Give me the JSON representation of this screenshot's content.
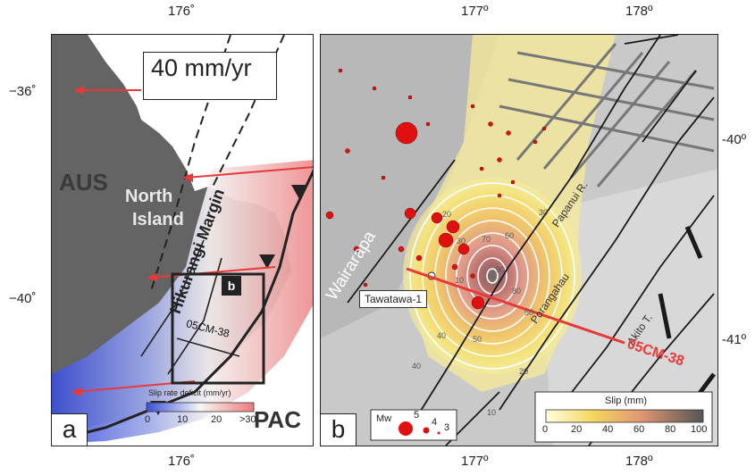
{
  "axes": {
    "a_lon_top": "176˚",
    "a_lon_bottom": "176˚",
    "a_lat_1": "−36˚",
    "a_lat_2": "−40˚",
    "b_lon_177_top": "177º",
    "b_lon_178_top": "178º",
    "b_lon_177_bottom": "177º",
    "b_lon_178_bottom": "178º",
    "b_lat_40": "-40º",
    "b_lat_41": "-41º"
  },
  "panel_a": {
    "letter": "a",
    "scale_label": "40 mm/yr",
    "plate_aus": "AUS",
    "plate_pac": "PAC",
    "north_island": "North Island",
    "north_island_line1": "North",
    "north_island_line2": "Island",
    "margin_label": "Hikurangi Margin",
    "inset_label": "b",
    "profile_label": "05CM-38",
    "colorbar_title": "Slip rate deficit (mm/yr)",
    "colorbar_ticks": [
      "0",
      "10",
      "20",
      ">30"
    ]
  },
  "panel_b": {
    "letter": "b",
    "wairarapa": "Wairarapa",
    "tawatawa": "Tawatawa-1",
    "papanui": "Papanui R.",
    "porangahau": "Porangahau",
    "akito": "Akito T.",
    "profile": "05CM-38",
    "contour_labels": [
      "10",
      "20",
      "30",
      "40",
      "50",
      "60",
      "70",
      "80",
      "90",
      "10",
      "20",
      "30",
      "40",
      "50"
    ],
    "mw_title": "Mw",
    "mw_values": [
      "5",
      "4",
      "3"
    ],
    "slip_title": "Slip (mm)",
    "slip_ticks": [
      "0",
      "20",
      "40",
      "60",
      "80",
      "100"
    ]
  },
  "colors": {
    "earthquake": "#e01010",
    "profile_line": "#e8393a",
    "land": "#646464",
    "fault": "#1a1a1a"
  }
}
